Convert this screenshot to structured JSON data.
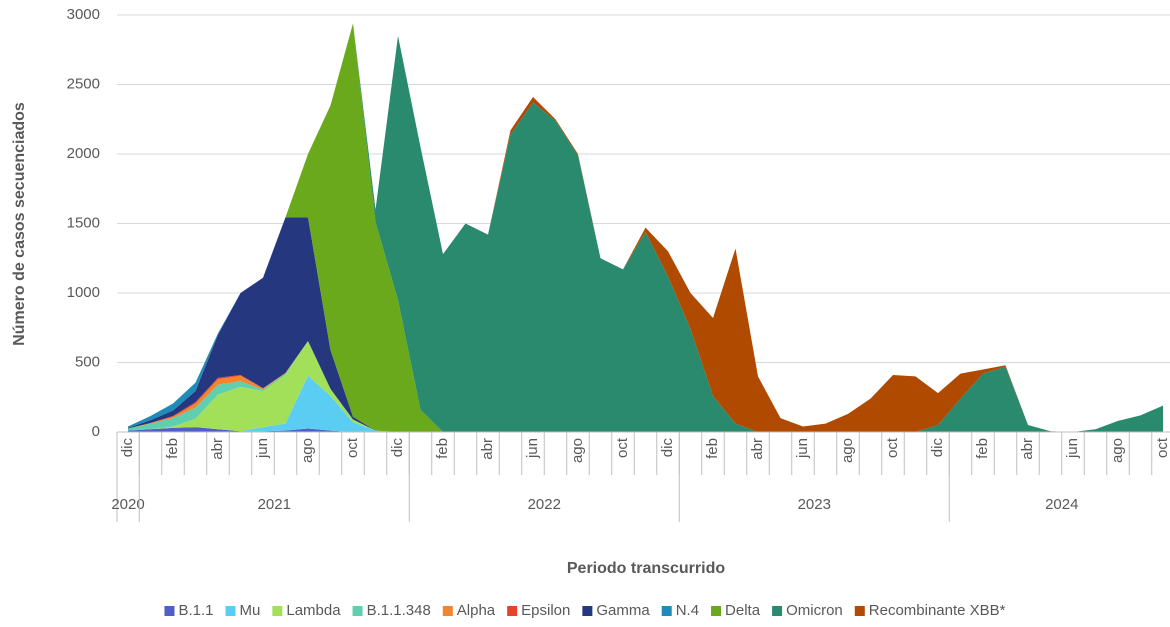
{
  "chart_data": {
    "type": "stacked-area",
    "y_label": "Número de casos secuenciados",
    "x_label": "Periodo transcurrido",
    "categories": [
      "dic",
      null,
      "feb",
      null,
      "abr",
      null,
      "jun",
      null,
      "ago",
      null,
      "oct",
      null,
      "dic",
      null,
      "feb",
      null,
      "abr",
      null,
      "jun",
      null,
      "ago",
      null,
      "oct",
      null,
      "dic",
      null,
      "feb",
      null,
      "abr",
      null,
      "jun",
      null,
      "ago",
      null,
      "oct",
      null,
      "dic",
      null,
      "feb",
      null,
      "abr",
      null,
      "jun",
      null,
      "ago",
      null,
      "oct"
    ],
    "year_groups": [
      {
        "label": "2020",
        "months": 1
      },
      {
        "label": "2021",
        "months": 12
      },
      {
        "label": "2022",
        "months": 12
      },
      {
        "label": "2023",
        "months": 12
      },
      {
        "label": "2024",
        "months": 10
      }
    ],
    "ylim": [
      0,
      3000
    ],
    "yticks": [
      0,
      500,
      1000,
      1500,
      2000,
      2500,
      3000
    ],
    "grid": true,
    "series": [
      {
        "name": "B.1.1",
        "color": "#4f5fc6",
        "values": [
          10,
          20,
          30,
          35,
          20,
          5,
          5,
          10,
          25,
          10,
          0,
          0,
          0,
          0,
          0,
          0,
          0,
          0,
          0,
          0,
          0,
          0,
          0,
          0,
          0,
          0,
          0,
          0,
          0,
          0,
          0,
          0,
          0,
          0,
          0,
          0,
          0,
          0,
          0,
          0,
          0,
          0,
          0,
          0,
          0,
          0,
          0
        ]
      },
      {
        "name": "Mu",
        "color": "#5bcdf2",
        "values": [
          0,
          0,
          0,
          0,
          0,
          0,
          30,
          50,
          380,
          250,
          70,
          10,
          0,
          0,
          0,
          0,
          0,
          0,
          0,
          0,
          0,
          0,
          0,
          0,
          0,
          0,
          0,
          0,
          0,
          0,
          0,
          0,
          0,
          0,
          0,
          0,
          0,
          0,
          0,
          0,
          0,
          0,
          0,
          0,
          0,
          0,
          0
        ]
      },
      {
        "name": "Lambda",
        "color": "#a3e05a",
        "values": [
          0,
          0,
          10,
          60,
          250,
          320,
          260,
          350,
          250,
          50,
          20,
          0,
          0,
          0,
          0,
          0,
          0,
          0,
          0,
          0,
          0,
          0,
          0,
          0,
          0,
          0,
          0,
          0,
          0,
          0,
          0,
          0,
          0,
          0,
          0,
          0,
          0,
          0,
          0,
          0,
          0,
          0,
          0,
          0,
          0,
          0,
          0
        ]
      },
      {
        "name": "B.1.1.348",
        "color": "#5fcfb0",
        "values": [
          15,
          40,
          60,
          80,
          70,
          40,
          10,
          10,
          0,
          0,
          0,
          0,
          0,
          0,
          0,
          0,
          0,
          0,
          0,
          0,
          0,
          0,
          0,
          0,
          0,
          0,
          0,
          0,
          0,
          0,
          0,
          0,
          0,
          0,
          0,
          0,
          0,
          0,
          0,
          0,
          0,
          0,
          0,
          0,
          0,
          0,
          0
        ]
      },
      {
        "name": "Alpha",
        "color": "#f4852f",
        "values": [
          0,
          5,
          10,
          30,
          40,
          40,
          10,
          5,
          0,
          0,
          0,
          0,
          0,
          0,
          0,
          0,
          0,
          0,
          0,
          0,
          0,
          0,
          0,
          0,
          0,
          0,
          0,
          0,
          0,
          0,
          0,
          0,
          0,
          0,
          0,
          0,
          0,
          0,
          0,
          0,
          0,
          0,
          0,
          0,
          0,
          0,
          0
        ]
      },
      {
        "name": "Epsilon",
        "color": "#e8412b",
        "values": [
          0,
          0,
          5,
          10,
          10,
          5,
          0,
          0,
          0,
          0,
          0,
          0,
          0,
          0,
          0,
          0,
          0,
          0,
          0,
          0,
          0,
          0,
          0,
          0,
          0,
          0,
          0,
          0,
          0,
          0,
          0,
          0,
          0,
          0,
          0,
          0,
          0,
          0,
          0,
          0,
          0,
          0,
          0,
          0,
          0,
          0,
          0
        ]
      },
      {
        "name": "Gamma",
        "color": "#25377f",
        "values": [
          5,
          20,
          40,
          80,
          310,
          590,
          795,
          1120,
          890,
          280,
          20,
          0,
          0,
          0,
          0,
          0,
          0,
          0,
          0,
          0,
          0,
          0,
          0,
          0,
          0,
          0,
          0,
          0,
          0,
          0,
          0,
          0,
          0,
          0,
          0,
          0,
          0,
          0,
          0,
          0,
          0,
          0,
          0,
          0,
          0,
          0,
          0
        ]
      },
      {
        "name": "N.4",
        "color": "#1e8bb8",
        "values": [
          10,
          30,
          50,
          60,
          10,
          0,
          0,
          0,
          0,
          0,
          0,
          0,
          0,
          0,
          0,
          0,
          0,
          0,
          0,
          0,
          0,
          0,
          0,
          0,
          0,
          0,
          0,
          0,
          0,
          0,
          0,
          0,
          0,
          0,
          0,
          0,
          0,
          0,
          0,
          0,
          0,
          0,
          0,
          0,
          0,
          0,
          0
        ]
      },
      {
        "name": "Delta",
        "color": "#6aa91c",
        "values": [
          0,
          0,
          0,
          0,
          0,
          0,
          0,
          0,
          455,
          1760,
          2830,
          1500,
          950,
          160,
          0,
          0,
          0,
          0,
          0,
          0,
          0,
          0,
          0,
          0,
          0,
          0,
          0,
          0,
          0,
          0,
          0,
          0,
          0,
          0,
          0,
          0,
          0,
          0,
          0,
          0,
          0,
          0,
          0,
          0,
          0,
          0,
          0
        ]
      },
      {
        "name": "Omicron",
        "color": "#2a8a6e",
        "values": [
          0,
          0,
          0,
          0,
          0,
          0,
          0,
          0,
          0,
          0,
          0,
          90,
          1900,
          1890,
          1280,
          1500,
          1420,
          2140,
          2370,
          2240,
          1990,
          1250,
          1170,
          1440,
          1120,
          740,
          260,
          60,
          0,
          0,
          0,
          0,
          0,
          0,
          0,
          0,
          50,
          240,
          420,
          470,
          50,
          5,
          0,
          20,
          80,
          120,
          190
        ]
      },
      {
        "name": "Recombinante XBB*",
        "color": "#b04a00",
        "values": [
          0,
          0,
          0,
          0,
          0,
          0,
          0,
          0,
          0,
          0,
          0,
          0,
          0,
          0,
          0,
          0,
          0,
          30,
          40,
          10,
          10,
          0,
          0,
          30,
          180,
          260,
          560,
          1260,
          400,
          100,
          40,
          60,
          130,
          240,
          410,
          400,
          230,
          180,
          30,
          10,
          0,
          0,
          0,
          0,
          0,
          0,
          0
        ]
      }
    ]
  }
}
